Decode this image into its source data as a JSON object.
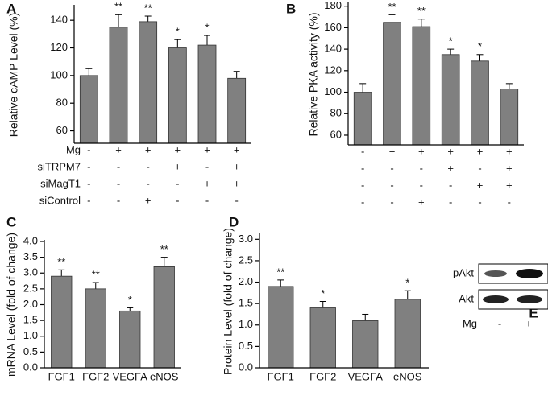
{
  "chart_data": [
    {
      "type": "bar",
      "panel": "A",
      "y_label": "Relative cAMP Level (%)",
      "values": [
        100,
        135,
        139,
        120,
        122,
        98
      ],
      "errors": [
        5,
        9,
        4,
        6,
        7,
        5
      ],
      "annotations": [
        null,
        "**",
        "**",
        "*",
        "*",
        null
      ],
      "color": "#808080",
      "ylim": [
        51,
        150
      ],
      "yticks": [
        60,
        80,
        100,
        120,
        140
      ],
      "conditions": [
        {
          "name": "Mg",
          "signs": [
            "-",
            "+",
            "+",
            "+",
            "+",
            "+"
          ]
        },
        {
          "name": "siTRPM7",
          "signs": [
            "-",
            "-",
            "-",
            "+",
            "-",
            "+"
          ]
        },
        {
          "name": "siMagT1",
          "signs": [
            "-",
            "-",
            "-",
            "-",
            "+",
            "+"
          ]
        },
        {
          "name": "siControl",
          "signs": [
            "-",
            "-",
            "+",
            "-",
            "-",
            "-"
          ]
        }
      ]
    },
    {
      "type": "bar",
      "panel": "B",
      "y_label": "Relative PKA activity (%)",
      "values": [
        100,
        165,
        161,
        135,
        129,
        103
      ],
      "errors": [
        8,
        7,
        7,
        5,
        6,
        5
      ],
      "annotations": [
        null,
        "**",
        "**",
        "*",
        "*",
        null
      ],
      "color": "#808080",
      "ylim": [
        51,
        182
      ],
      "yticks": [
        60,
        80,
        100,
        120,
        140,
        160,
        180
      ],
      "conditions": [
        {
          "signs": [
            "-",
            "+",
            "+",
            "+",
            "+",
            "+"
          ]
        },
        {
          "signs": [
            "-",
            "-",
            "-",
            "+",
            "-",
            "+"
          ]
        },
        {
          "signs": [
            "-",
            "-",
            "-",
            "-",
            "+",
            "+"
          ]
        },
        {
          "signs": [
            "-",
            "-",
            "+",
            "-",
            "-",
            "-"
          ]
        }
      ]
    },
    {
      "type": "bar",
      "panel": "C",
      "y_label": "mRNA Level (fold of change)",
      "categories": [
        "FGF1",
        "FGF2",
        "VEGFA",
        "eNOS"
      ],
      "values": [
        2.9,
        2.5,
        1.8,
        3.2
      ],
      "errors": [
        0.2,
        0.2,
        0.1,
        0.3
      ],
      "annotations": [
        "**",
        "**",
        "*",
        "**"
      ],
      "color": "#808080",
      "ylim": [
        0,
        4
      ],
      "yticks": [
        {
          "value": 0,
          "label": "0.0"
        },
        {
          "value": 0.5,
          "label": "0.5"
        },
        {
          "value": 1,
          "label": "1.0"
        },
        {
          "value": 1.5,
          "label": "1.5"
        },
        {
          "value": 2,
          "label": "2.0"
        },
        {
          "value": 2.5,
          "label": "2.5"
        },
        {
          "value": 3,
          "label": "3.0"
        },
        {
          "value": 3.5,
          "label": "3.5"
        },
        {
          "value": 4,
          "label": "4.0"
        }
      ]
    },
    {
      "type": "bar",
      "panel": "D",
      "y_label": "Protein Level (fold of change)",
      "categories": [
        "FGF1",
        "FGF2",
        "VEGFA",
        "eNOS"
      ],
      "values": [
        1.9,
        1.4,
        1.1,
        1.6
      ],
      "errors": [
        0.15,
        0.15,
        0.15,
        0.2
      ],
      "annotations": [
        "**",
        "*",
        null,
        "*"
      ],
      "color": "#808080",
      "ylim": [
        0,
        3.1
      ],
      "yticks": [
        {
          "value": 0,
          "label": "0.0"
        },
        {
          "value": 0.5,
          "label": "0.5"
        },
        {
          "value": 1,
          "label": "1.0"
        },
        {
          "value": 1.5,
          "label": "1.5"
        },
        {
          "value": 2,
          "label": "2.0"
        },
        {
          "value": 2.5,
          "label": "2.5"
        },
        {
          "value": 3,
          "label": "3.0"
        }
      ]
    }
  ],
  "blot": {
    "panel": "E",
    "rows": [
      "pAkt",
      "Akt"
    ],
    "lane_row": "Mg",
    "lanes": [
      "-",
      "+"
    ]
  }
}
